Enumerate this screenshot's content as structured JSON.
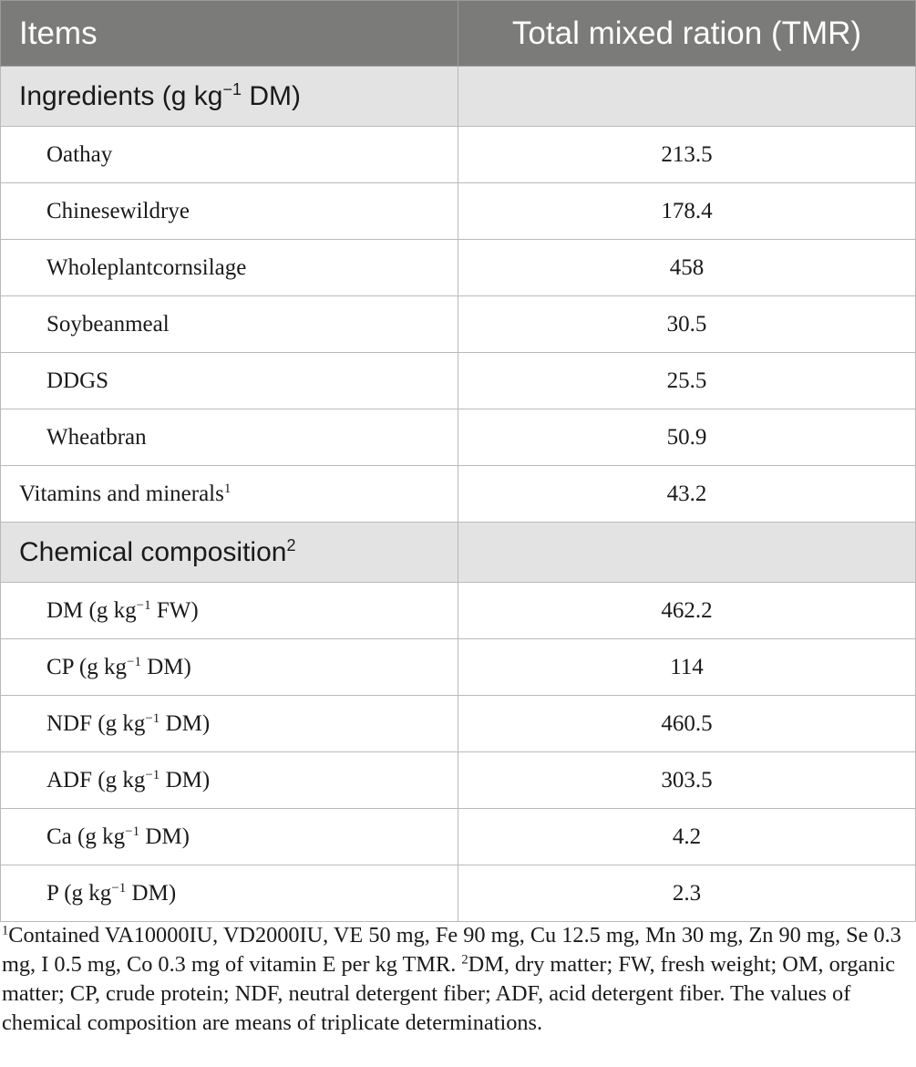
{
  "header": {
    "col1": "Items",
    "col2": "Total mixed ration (TMR)"
  },
  "sections": [
    {
      "title": "Ingredients (g kg",
      "title_sup": "−1",
      "title_tail": " DM)",
      "rows": [
        {
          "label": "Oathay",
          "value": "213.5"
        },
        {
          "label": "Chinesewildrye",
          "value": "178.4"
        },
        {
          "label": "Wholeplantcornsilage",
          "value": "458"
        },
        {
          "label": "Soybeanmeal",
          "value": "30.5"
        },
        {
          "label": "DDGS",
          "value": "25.5"
        },
        {
          "label": "Wheatbran",
          "value": "50.9"
        },
        {
          "label": "Vitamins and minerals",
          "label_sup": "1",
          "value": "43.2"
        }
      ]
    },
    {
      "title": "Chemical composition",
      "title_sup": "2",
      "rows": [
        {
          "label": "DM (g kg",
          "label_sup": "−1",
          "label_tail": " FW)",
          "value": "462.2"
        },
        {
          "label": "CP (g kg",
          "label_sup": "−1",
          "label_tail": " DM)",
          "value": "114"
        },
        {
          "label": "NDF (g kg",
          "label_sup": "−1",
          "label_tail": " DM)",
          "value": "460.5"
        },
        {
          "label": "ADF (g kg",
          "label_sup": "−1",
          "label_tail": " DM)",
          "value": "303.5"
        },
        {
          "label": "Ca (g kg",
          "label_sup": "−1",
          "label_tail": " DM)",
          "value": "4.2"
        },
        {
          "label": "P (g kg",
          "label_sup": "−1",
          "label_tail": " DM)",
          "value": "2.3"
        }
      ]
    }
  ],
  "footnote": {
    "sup1": "1",
    "text1": "Contained VA10000IU, VD2000IU, VE 50 mg, Fe 90 mg, Cu 12.5 mg, Mn 30 mg, Zn 90 mg, Se 0.3 mg, I 0.5 mg, Co 0.3 mg of vitamin E per kg TMR. ",
    "sup2": "2",
    "text2": "DM, dry matter; FW, fresh weight; OM, organic matter; CP, crude protein; NDF, neutral detergent fiber; ADF, acid detergent fiber. The values of chemical composition are means of triplicate determinations."
  }
}
